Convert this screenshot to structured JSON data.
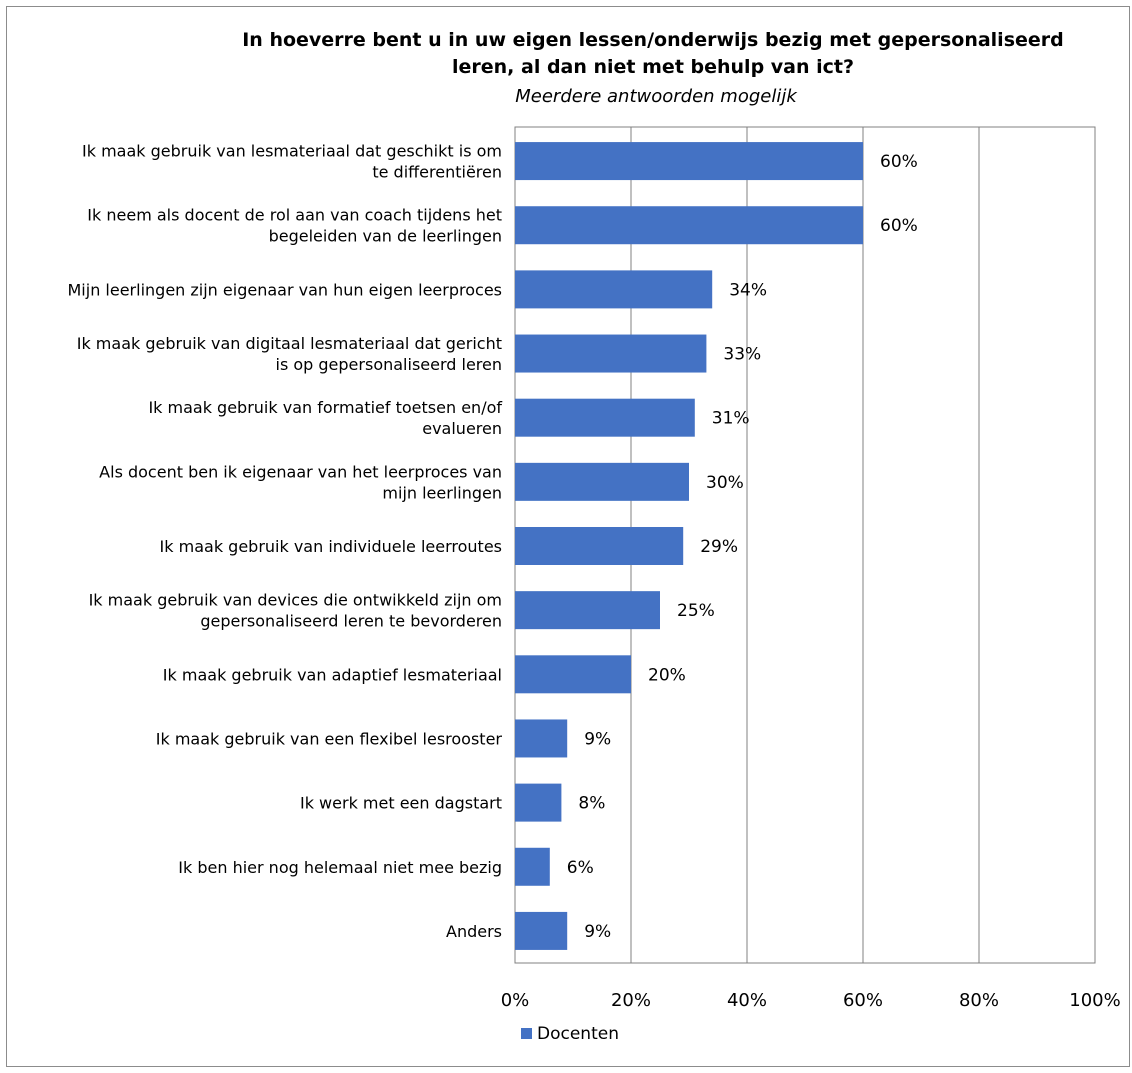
{
  "chart_data": {
    "type": "bar",
    "orientation": "horizontal",
    "title_lines": [
      "In hoeverre bent u in uw eigen lessen/onderwijs bezig met gepersonaliseerd",
      "leren, al dan niet met behulp van ict?"
    ],
    "subtitle": "Meerdere antwoorden mogelijk",
    "categories": [
      [
        "Ik maak gebruik van lesmateriaal dat geschikt is om",
        "te differentiëren"
      ],
      [
        "Ik neem als docent de rol aan van coach tijdens het",
        "begeleiden van de leerlingen"
      ],
      [
        "Mijn leerlingen zijn eigenaar van hun eigen leerproces"
      ],
      [
        "Ik maak gebruik van digitaal lesmateriaal dat gericht",
        "is op gepersonaliseerd leren"
      ],
      [
        "Ik maak gebruik van formatief toetsen en/of",
        "evalueren"
      ],
      [
        "Als docent ben ik eigenaar van het leerproces van",
        "mijn leerlingen"
      ],
      [
        "Ik maak gebruik van individuele leerroutes"
      ],
      [
        "Ik maak gebruik van devices die ontwikkeld zijn om",
        "gepersonaliseerd leren te bevorderen"
      ],
      [
        "Ik maak gebruik van adaptief lesmateriaal"
      ],
      [
        "Ik maak gebruik van een flexibel lesrooster"
      ],
      [
        "Ik werk met een dagstart"
      ],
      [
        "Ik ben hier nog helemaal niet mee bezig"
      ],
      [
        "Anders"
      ]
    ],
    "series": [
      {
        "name": "Docenten",
        "color": "#4472c4",
        "values": [
          60,
          60,
          34,
          33,
          31,
          30,
          29,
          25,
          20,
          9,
          8,
          6,
          9
        ],
        "labels": [
          "60%",
          "60%",
          "34%",
          "33%",
          "31%",
          "30%",
          "29%",
          "25%",
          "20%",
          "9%",
          "8%",
          "6%",
          "9%"
        ]
      }
    ],
    "xlim": [
      0,
      100
    ],
    "xticks": [
      0,
      20,
      40,
      60,
      80,
      100
    ],
    "xtick_labels": [
      "0%",
      "20%",
      "40%",
      "60%",
      "80%",
      "100%"
    ],
    "grid": true,
    "legend_position": "bottom"
  }
}
